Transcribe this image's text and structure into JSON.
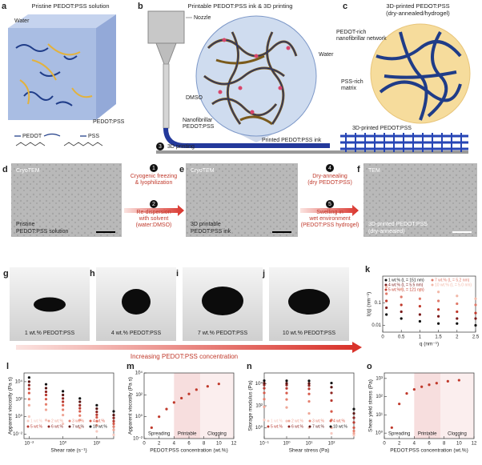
{
  "a": {
    "label": "a",
    "title": "Pristine PEDOT:PSS solution",
    "water": "Water",
    "pedot_pss": "PEDOT:PSS",
    "pedot": "PEDOT",
    "pss": "PSS"
  },
  "b": {
    "label": "b",
    "title": "Printable PEDOT:PSS ink & 3D printing",
    "nozzle": "Nozzle",
    "water": "Water",
    "dmso": "DMSO",
    "nanofibrillar": [
      "Nanofibrillar",
      "PEDOT:PSS"
    ],
    "step": "3",
    "step_text": "3D printing",
    "ink": "Printed PEDOT:PSS ink"
  },
  "c": {
    "label": "c",
    "title": "3D-printed PEDOT:PSS",
    "subtitle": "(dry-annealed/hydrogel)",
    "rich": [
      "PEDOT-rich",
      "nanofibrillar network"
    ],
    "pss_rich": [
      "PSS-rich",
      "matrix"
    ],
    "printed": "3D-printed PEDOT:PSS"
  },
  "d": {
    "label": "d",
    "tag": "CryoTEM",
    "caption": [
      "Pristine",
      "PEDOT:PSS solution"
    ]
  },
  "steps_de": [
    {
      "num": "1",
      "lines": [
        "Cryogenic freezing",
        "& lyophilization"
      ]
    },
    {
      "num": "2",
      "lines": [
        "Re-dispersion",
        "with solvent",
        "(water:DMSO)"
      ]
    }
  ],
  "e": {
    "label": "e",
    "tag": "CryoTEM",
    "caption": [
      "3D printable",
      "PEDOT:PSS ink"
    ]
  },
  "steps_ef": [
    {
      "num": "4",
      "lines": [
        "Dry-annealing",
        "(dry PEDOT:PSS)"
      ]
    },
    {
      "num": "5",
      "lines": [
        "Swelling in",
        "wet environment",
        "(PEDOT:PSS hydrogel)"
      ]
    }
  ],
  "f": {
    "label": "f",
    "tag": "TEM",
    "caption": [
      "3D-printed PEDOT:PSS",
      "(dry-annealed)"
    ]
  },
  "photos": [
    {
      "label": "g",
      "caption": "1 wt.% PEDOT:PSS"
    },
    {
      "label": "h",
      "caption": "4 wt.% PEDOT:PSS"
    },
    {
      "label": "i",
      "caption": "7 wt.% PEDOT:PSS"
    },
    {
      "label": "j",
      "caption": "10 wt.% PEDOT:PSS"
    }
  ],
  "arrow_text": "Increasing PEDOT:PSS concentration",
  "k": {
    "label": "k",
    "type": "scatter",
    "xlabel": "q (nm⁻¹)",
    "ylabel": "I(q) (nm⁻¹)",
    "ylog": true,
    "xlim": [
      0,
      2.5
    ],
    "xticks": [
      0,
      0.5,
      1,
      1.5,
      2,
      2.5
    ],
    "ylim": [
      0.005,
      1.5
    ],
    "yticks": [
      0.01,
      0.1
    ],
    "x": [
      0.1,
      0.5,
      1,
      1.5,
      2,
      2.5
    ],
    "series": [
      {
        "name": "1 wt.% (L = 151 nm)",
        "color": "#111111",
        "values": [
          0.03,
          0.02,
          0.015,
          0.012,
          0.012,
          0.01
        ]
      },
      {
        "name": "4 wt.% (L = 5.5 nm)",
        "color": "#7a1a1a",
        "values": [
          0.06,
          0.04,
          0.03,
          0.025,
          0.02,
          0.02
        ]
      },
      {
        "name": "5 wt.% (L = 121 nm)",
        "color": "#c0392b",
        "values": [
          0.12,
          0.08,
          0.07,
          0.05,
          0.04,
          0.035
        ]
      },
      {
        "name": "7 wt.% (L = 5.2 nm)",
        "color": "#e07a6a",
        "values": [
          0.25,
          0.18,
          0.15,
          0.12,
          0.09,
          0.08
        ]
      },
      {
        "name": "10 wt.% (L = 5.0 nm)",
        "color": "#f2b8a8",
        "values": [
          0.5,
          0.4,
          0.35,
          0.3,
          0.2,
          0.15
        ]
      }
    ]
  },
  "l": {
    "label": "l",
    "type": "scatter",
    "xlabel": "Shear rate (s⁻¹)",
    "ylabel": "Apparent viscosity (Pa s)",
    "xlog": true,
    "ylog": true,
    "xlim": [
      0.005,
      1000
    ],
    "xticks": [
      {
        "value": 0.01,
        "label": "10⁻²"
      },
      {
        "value": 1,
        "label": "10⁰"
      },
      {
        "value": 100,
        "label": "10²"
      }
    ],
    "ylim": [
      0.003,
      100000
    ],
    "yticks": [
      {
        "value": 0.01,
        "label": "10⁻²"
      },
      {
        "value": 1,
        "label": "10⁰"
      },
      {
        "value": 100,
        "label": "10²"
      },
      {
        "value": 10000,
        "label": "10⁴"
      }
    ],
    "x": [
      0.01,
      0.1,
      1,
      10,
      100,
      1000
    ],
    "series": [
      {
        "name": "1 wt.%",
        "color": "#f6c9c0",
        "values": [
          1,
          0.4,
          0.15,
          0.05,
          0.02,
          0.008
        ]
      },
      {
        "name": "2 wt.%",
        "color": "#efa696",
        "values": [
          20,
          6,
          1.5,
          0.4,
          0.1,
          0.03
        ]
      },
      {
        "name": "3 wt.%",
        "color": "#e5806e",
        "values": [
          100,
          25,
          6,
          1.3,
          0.3,
          0.07
        ]
      },
      {
        "name": "4 wt.%",
        "color": "#d65a4a",
        "values": [
          500,
          100,
          20,
          4,
          0.8,
          0.15
        ]
      },
      {
        "name": "5 wt.%",
        "color": "#b93a30",
        "values": [
          1500,
          300,
          50,
          9,
          1.6,
          0.3
        ]
      },
      {
        "name": "6 wt.%",
        "color": "#8e2420",
        "values": [
          4000,
          700,
          120,
          20,
          3.5,
          0.7
        ]
      },
      {
        "name": "7 wt.%",
        "color": "#5a1412",
        "values": [
          10000,
          1800,
          300,
          50,
          8,
          1.5
        ]
      },
      {
        "name": "10 wt.%",
        "color": "#111111",
        "values": [
          30000,
          5000,
          800,
          120,
          20,
          4
        ]
      }
    ]
  },
  "m": {
    "label": "m",
    "type": "scatter",
    "xlabel": "PEDOT:PSS concentration (wt.%)",
    "ylabel": "Apparent viscosity (Pa s)",
    "ylog": true,
    "xlim": [
      0,
      12
    ],
    "xticks": [
      0,
      2,
      4,
      6,
      8,
      10,
      12
    ],
    "ylim": [
      0.01,
      10000
    ],
    "yticks": [
      {
        "value": 0.01,
        "label": "10⁻²"
      },
      {
        "value": 1,
        "label": "10⁰"
      },
      {
        "value": 100,
        "label": "10²"
      },
      {
        "value": 10000,
        "label": "10⁴"
      }
    ],
    "regions": [
      {
        "name": "Spreading",
        "from": 0,
        "to": 4,
        "color": "#ffffff"
      },
      {
        "name": "Printable",
        "from": 4,
        "to": 7.5,
        "color": "#f7dede"
      },
      {
        "name": "Clogging",
        "from": 7.5,
        "to": 12,
        "color": "#fbeeee"
      }
    ],
    "x": [
      1,
      2,
      3,
      4,
      5,
      6,
      7,
      8.5,
      10
    ],
    "series": [
      {
        "color": "#c0392b",
        "values": [
          0.1,
          1,
          5,
          20,
          50,
          120,
          300,
          600,
          1000
        ]
      }
    ]
  },
  "n": {
    "label": "n",
    "type": "scatter",
    "xlabel": "Shear stress (Pa)",
    "ylabel": "Storage modulus (Pa)",
    "xlog": true,
    "ylog": true,
    "xlim": [
      0.1,
      1000
    ],
    "xticks": [
      {
        "value": 0.1,
        "label": "10⁻¹"
      },
      {
        "value": 1,
        "label": "10⁰"
      },
      {
        "value": 10,
        "label": "10¹"
      },
      {
        "value": 100,
        "label": "10²"
      }
    ],
    "ylim": [
      0.1,
      100000
    ],
    "yticks": [
      {
        "value": 1,
        "label": "10⁰"
      },
      {
        "value": 100,
        "label": "10²"
      },
      {
        "value": 10000,
        "label": "10⁴"
      }
    ],
    "x": [
      0.1,
      1,
      10,
      100,
      1000
    ],
    "series": [
      {
        "name": "1 wt.%",
        "color": "#f6c9c0",
        "values": [
          5,
          4,
          1,
          0.3,
          0.2
        ]
      },
      {
        "name": "2 wt.%",
        "color": "#efa696",
        "values": [
          80,
          70,
          20,
          1,
          0.3
        ]
      },
      {
        "name": "3 wt.%",
        "color": "#e5806e",
        "values": [
          400,
          380,
          250,
          5,
          0.5
        ]
      },
      {
        "name": "4 wt.%",
        "color": "#d65a4a",
        "values": [
          1500,
          1450,
          1200,
          30,
          1
        ]
      },
      {
        "name": "5 wt.%",
        "color": "#b93a30",
        "values": [
          4000,
          3900,
          3500,
          300,
          3
        ]
      },
      {
        "name": "6 wt.%",
        "color": "#8e2420",
        "values": [
          8000,
          7800,
          7000,
          1500,
          8
        ]
      },
      {
        "name": "7 wt.%",
        "color": "#5a1412",
        "values": [
          12000,
          11500,
          11000,
          5000,
          20
        ]
      },
      {
        "name": "10 wt.%",
        "color": "#111111",
        "values": [
          20000,
          19500,
          19000,
          12000,
          50
        ]
      }
    ]
  },
  "o": {
    "label": "o",
    "type": "scatter",
    "xlabel": "PEDOT:PSS concentration (wt.%)",
    "ylabel": "Shear yield stress (Pa)",
    "ylog": true,
    "xlim": [
      0,
      12
    ],
    "xticks": [
      0,
      2,
      4,
      6,
      8,
      10,
      12
    ],
    "ylim": [
      0.5,
      2000
    ],
    "yticks": [
      {
        "value": 1,
        "label": "10⁰"
      },
      {
        "value": 10,
        "label": "10¹"
      },
      {
        "value": 100,
        "label": "10²"
      },
      {
        "value": 1000,
        "label": "10³"
      }
    ],
    "regions": [
      {
        "name": "Spreading",
        "from": 0,
        "to": 4,
        "color": "#ffffff"
      },
      {
        "name": "Printable",
        "from": 4,
        "to": 7.5,
        "color": "#f7dede"
      },
      {
        "name": "Clogging",
        "from": 7.5,
        "to": 12,
        "color": "#fbeeee"
      }
    ],
    "x": [
      1,
      2,
      3,
      4,
      5,
      6,
      7,
      8.5,
      10
    ],
    "series": [
      {
        "color": "#c0392b",
        "values": [
          2,
          40,
          150,
          250,
          350,
          450,
          550,
          700,
          800
        ]
      }
    ]
  }
}
